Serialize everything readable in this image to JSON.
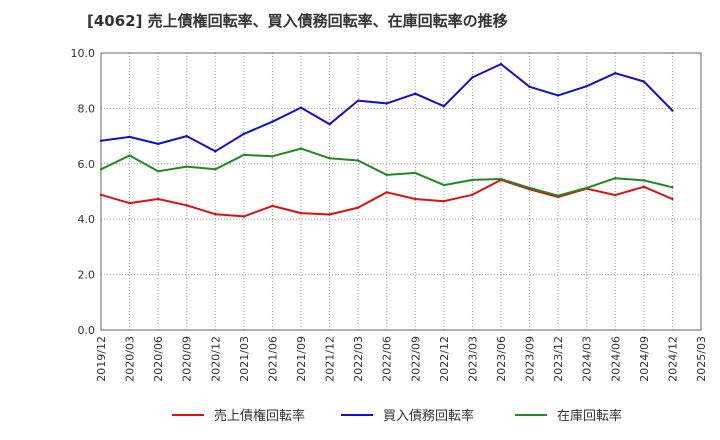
{
  "chart_data": {
    "type": "line",
    "title": "[4062]  売上債権回転率、買入債務回転率、在庫回転率の推移",
    "xlabel": "",
    "ylabel": "",
    "ylim": [
      0,
      10
    ],
    "yticks": [
      "0.0",
      "2.0",
      "4.0",
      "6.0",
      "8.0",
      "10.0"
    ],
    "categories": [
      "2019/12",
      "2020/03",
      "2020/06",
      "2020/09",
      "2020/12",
      "2021/03",
      "2021/06",
      "2021/09",
      "2021/12",
      "2022/03",
      "2022/06",
      "2022/09",
      "2022/12",
      "2023/03",
      "2023/06",
      "2023/09",
      "2023/12",
      "2024/03",
      "2024/06",
      "2024/09",
      "2024/12",
      "2025/03"
    ],
    "grid": true,
    "legend_position": "bottom",
    "series": [
      {
        "name": "売上債権回転率",
        "color": "#dd1111",
        "values": [
          4.88,
          4.58,
          4.73,
          4.5,
          4.18,
          4.1,
          4.48,
          4.22,
          4.17,
          4.42,
          4.97,
          4.73,
          4.65,
          4.88,
          5.42,
          5.08,
          4.8,
          5.1,
          4.87,
          5.17,
          4.73,
          null
        ]
      },
      {
        "name": "買入債務回転率",
        "color": "#1111cc",
        "values": [
          6.83,
          6.97,
          6.72,
          7.0,
          6.45,
          7.08,
          7.52,
          8.03,
          7.43,
          8.28,
          8.18,
          8.53,
          8.08,
          9.12,
          9.6,
          8.78,
          8.47,
          8.8,
          9.27,
          8.97,
          7.92,
          null
        ]
      },
      {
        "name": "在庫回転率",
        "color": "#228822",
        "values": [
          5.8,
          6.3,
          5.73,
          5.9,
          5.8,
          6.32,
          6.27,
          6.55,
          6.2,
          6.12,
          5.6,
          5.67,
          5.23,
          5.42,
          5.45,
          5.13,
          4.85,
          5.13,
          5.48,
          5.4,
          5.15,
          null
        ]
      }
    ]
  }
}
